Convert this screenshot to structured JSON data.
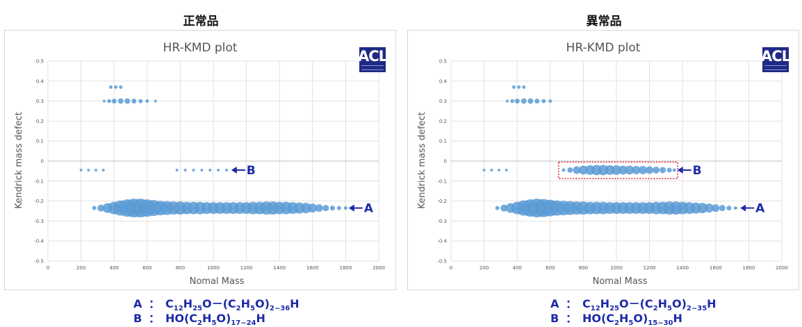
{
  "chart_data": [
    {
      "type": "scatter",
      "panel_title": "正常品",
      "title": "HR-KMD plot",
      "xlabel": "Nomal Mass",
      "ylabel": "Kendrick mass defect",
      "xlim": [
        0,
        2000
      ],
      "ylim": [
        -0.5,
        0.5
      ],
      "xticks": [
        0,
        200,
        400,
        600,
        800,
        1000,
        1200,
        1400,
        1600,
        1800,
        2000
      ],
      "yticks": [
        0.5,
        0.4,
        0.3,
        0.2,
        0.1,
        0,
        -0.1,
        -0.2,
        -0.3,
        -0.4,
        -0.5
      ],
      "grid": true,
      "marker_color": "#5b9bd5",
      "series": [
        {
          "points": [
            [
              380,
              0.37
            ],
            [
              410,
              0.37
            ],
            [
              440,
              0.37
            ]
          ],
          "sizes": [
            2.5,
            2.5,
            2.5
          ]
        },
        {
          "points": [
            [
              340,
              0.3
            ],
            [
              370,
              0.3
            ],
            [
              400,
              0.3
            ],
            [
              440,
              0.3
            ],
            [
              480,
              0.3
            ],
            [
              520,
              0.3
            ],
            [
              560,
              0.3
            ],
            [
              600,
              0.3
            ],
            [
              650,
              0.3
            ]
          ],
          "sizes": [
            2,
            2.8,
            3.5,
            4,
            4,
            3.5,
            3,
            2.5,
            2
          ]
        },
        {
          "points": [
            [
              200,
              -0.045
            ],
            [
              245,
              -0.045
            ],
            [
              290,
              -0.045
            ],
            [
              335,
              -0.045
            ]
          ],
          "sizes": [
            2,
            2,
            2,
            2
          ]
        },
        {
          "points": [
            [
              780,
              -0.045
            ],
            [
              830,
              -0.045
            ],
            [
              880,
              -0.045
            ],
            [
              930,
              -0.045
            ],
            [
              980,
              -0.045
            ],
            [
              1030,
              -0.045
            ],
            [
              1080,
              -0.045
            ]
          ],
          "sizes": [
            2,
            2,
            2,
            2,
            2,
            2,
            2
          ]
        },
        {
          "points": [
            [
              280,
              -0.235
            ],
            [
              320,
              -0.235
            ],
            [
              360,
              -0.235
            ],
            [
              400,
              -0.235
            ],
            [
              440,
              -0.235
            ],
            [
              480,
              -0.235
            ],
            [
              520,
              -0.235
            ],
            [
              560,
              -0.235
            ],
            [
              600,
              -0.235
            ],
            [
              640,
              -0.235
            ],
            [
              680,
              -0.235
            ],
            [
              720,
              -0.235
            ],
            [
              760,
              -0.235
            ],
            [
              800,
              -0.235
            ],
            [
              840,
              -0.235
            ],
            [
              880,
              -0.235
            ],
            [
              920,
              -0.235
            ],
            [
              960,
              -0.235
            ],
            [
              1000,
              -0.235
            ],
            [
              1040,
              -0.235
            ],
            [
              1080,
              -0.235
            ],
            [
              1120,
              -0.235
            ],
            [
              1160,
              -0.235
            ],
            [
              1200,
              -0.235
            ],
            [
              1240,
              -0.235
            ],
            [
              1280,
              -0.235
            ],
            [
              1320,
              -0.235
            ],
            [
              1360,
              -0.235
            ],
            [
              1400,
              -0.235
            ],
            [
              1440,
              -0.235
            ],
            [
              1480,
              -0.235
            ],
            [
              1520,
              -0.235
            ],
            [
              1560,
              -0.235
            ],
            [
              1600,
              -0.235
            ],
            [
              1640,
              -0.235
            ],
            [
              1680,
              -0.235
            ],
            [
              1720,
              -0.235
            ],
            [
              1760,
              -0.235
            ],
            [
              1800,
              -0.235
            ]
          ],
          "sizes": [
            3,
            5,
            7,
            9,
            11,
            12.5,
            13.5,
            13.5,
            12.5,
            11.5,
            10.5,
            10,
            9.5,
            9.5,
            9,
            9,
            9,
            8.5,
            8.5,
            8.5,
            8.5,
            8.5,
            8.5,
            8.5,
            9,
            9,
            9.5,
            9.5,
            9,
            9,
            8.5,
            8,
            7.5,
            6.5,
            5.5,
            4.5,
            3.5,
            3,
            2.5
          ]
        }
      ],
      "annotations": [
        {
          "text": "B",
          "x": 1100,
          "y": -0.045
        },
        {
          "text": "A",
          "x": 1810,
          "y": -0.235
        }
      ],
      "highlight_box": null
    },
    {
      "type": "scatter",
      "panel_title": "異常品",
      "title": "HR-KMD plot",
      "xlabel": "Nomal Mass",
      "ylabel": "Kendrick mass defect",
      "xlim": [
        0,
        2000
      ],
      "ylim": [
        -0.5,
        0.5
      ],
      "xticks": [
        0,
        200,
        400,
        600,
        800,
        1000,
        1200,
        1400,
        1600,
        1800,
        2000
      ],
      "yticks": [
        0.5,
        0.4,
        0.3,
        0.2,
        0.1,
        0,
        -0.1,
        -0.2,
        -0.3,
        -0.4,
        -0.5
      ],
      "grid": true,
      "marker_color": "#5b9bd5",
      "series": [
        {
          "points": [
            [
              380,
              0.37
            ],
            [
              410,
              0.37
            ],
            [
              440,
              0.37
            ]
          ],
          "sizes": [
            2.5,
            2.5,
            2.5
          ]
        },
        {
          "points": [
            [
              340,
              0.3
            ],
            [
              370,
              0.3
            ],
            [
              400,
              0.3
            ],
            [
              440,
              0.3
            ],
            [
              480,
              0.3
            ],
            [
              520,
              0.3
            ],
            [
              560,
              0.3
            ],
            [
              600,
              0.3
            ]
          ],
          "sizes": [
            2,
            2.8,
            3.5,
            4,
            4,
            3.5,
            3,
            2.5
          ]
        },
        {
          "points": [
            [
              200,
              -0.045
            ],
            [
              245,
              -0.045
            ],
            [
              290,
              -0.045
            ],
            [
              335,
              -0.045
            ]
          ],
          "sizes": [
            2,
            2,
            2,
            2
          ]
        },
        {
          "points": [
            [
              680,
              -0.045
            ],
            [
              720,
              -0.045
            ],
            [
              760,
              -0.045
            ],
            [
              800,
              -0.045
            ],
            [
              840,
              -0.045
            ],
            [
              880,
              -0.045
            ],
            [
              920,
              -0.045
            ],
            [
              960,
              -0.045
            ],
            [
              1000,
              -0.045
            ],
            [
              1040,
              -0.045
            ],
            [
              1080,
              -0.045
            ],
            [
              1120,
              -0.045
            ],
            [
              1160,
              -0.045
            ],
            [
              1200,
              -0.045
            ],
            [
              1240,
              -0.045
            ],
            [
              1280,
              -0.045
            ],
            [
              1320,
              -0.045
            ],
            [
              1350,
              -0.045
            ]
          ],
          "sizes": [
            2.5,
            4,
            5.5,
            6.5,
            7,
            7.5,
            7.5,
            7,
            7,
            6.5,
            6.5,
            6,
            6,
            5.5,
            5,
            4.5,
            3.5,
            2.5
          ]
        },
        {
          "points": [
            [
              280,
              -0.235
            ],
            [
              320,
              -0.235
            ],
            [
              360,
              -0.235
            ],
            [
              400,
              -0.235
            ],
            [
              440,
              -0.235
            ],
            [
              480,
              -0.235
            ],
            [
              520,
              -0.235
            ],
            [
              560,
              -0.235
            ],
            [
              600,
              -0.235
            ],
            [
              640,
              -0.235
            ],
            [
              680,
              -0.235
            ],
            [
              720,
              -0.235
            ],
            [
              760,
              -0.235
            ],
            [
              800,
              -0.235
            ],
            [
              840,
              -0.235
            ],
            [
              880,
              -0.235
            ],
            [
              920,
              -0.235
            ],
            [
              960,
              -0.235
            ],
            [
              1000,
              -0.235
            ],
            [
              1040,
              -0.235
            ],
            [
              1080,
              -0.235
            ],
            [
              1120,
              -0.235
            ],
            [
              1160,
              -0.235
            ],
            [
              1200,
              -0.235
            ],
            [
              1240,
              -0.235
            ],
            [
              1280,
              -0.235
            ],
            [
              1320,
              -0.235
            ],
            [
              1360,
              -0.235
            ],
            [
              1400,
              -0.235
            ],
            [
              1440,
              -0.235
            ],
            [
              1480,
              -0.235
            ],
            [
              1520,
              -0.235
            ],
            [
              1560,
              -0.235
            ],
            [
              1600,
              -0.235
            ],
            [
              1640,
              -0.235
            ],
            [
              1680,
              -0.235
            ],
            [
              1720,
              -0.235
            ]
          ],
          "sizes": [
            3,
            5,
            7,
            9,
            11,
            12.5,
            13.5,
            13,
            12,
            11,
            10.5,
            10,
            9.5,
            9.5,
            9,
            9,
            9,
            8.5,
            8.5,
            8.5,
            8.5,
            8.5,
            8.5,
            8.5,
            9,
            9,
            9.5,
            9.5,
            9,
            8.5,
            8,
            7.5,
            6.5,
            5.5,
            4.5,
            3.5,
            2.5
          ]
        }
      ],
      "annotations": [
        {
          "text": "B",
          "x": 1360,
          "y": -0.045
        },
        {
          "text": "A",
          "x": 1740,
          "y": -0.235
        }
      ],
      "highlight_box": {
        "x0": 650,
        "x1": 1370,
        "y0": -0.005,
        "y1": -0.088,
        "color": "#e0303a"
      }
    }
  ],
  "logo": {
    "text": "ACL"
  },
  "formulas": [
    {
      "a_letter": "A",
      "b_letter": "B",
      "colon": "：",
      "a_parts": [
        "C",
        "12",
        "H",
        "25",
        "O－(C",
        "2",
        "H",
        "5",
        "O)",
        "2~36",
        "H"
      ],
      "b_parts": [
        "HO(C",
        "2",
        "H",
        "5",
        "O)",
        "17~24",
        "H"
      ]
    },
    {
      "a_letter": "A",
      "b_letter": "B",
      "colon": "：",
      "a_parts": [
        "C",
        "12",
        "H",
        "25",
        "O－(C",
        "2",
        "H",
        "5",
        "O)",
        "2~35",
        "H"
      ],
      "b_parts": [
        "HO(C",
        "2",
        "H",
        "5",
        "O)",
        "15~30",
        "H"
      ]
    }
  ],
  "colors": {
    "marker": "#5b9bd5",
    "annotation": "#1d2aa6",
    "highlight": "#e0303a",
    "grid": "#d9d9d9"
  }
}
